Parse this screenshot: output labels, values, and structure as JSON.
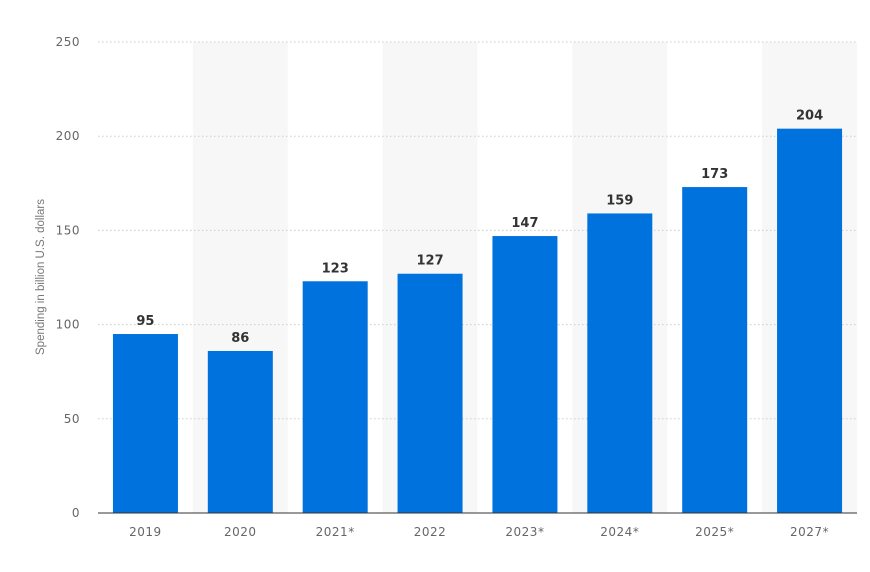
{
  "chart_data": {
    "type": "bar",
    "categories": [
      "2019",
      "2020",
      "2021*",
      "2022",
      "2023*",
      "2024*",
      "2025*",
      "2027*"
    ],
    "values": [
      95,
      86,
      123,
      127,
      147,
      159,
      173,
      204
    ],
    "value_labels": [
      "95",
      "86",
      "123",
      "127",
      "147",
      "159",
      "173",
      "204"
    ],
    "title": "",
    "xlabel": "",
    "ylabel": "Spending in billion U.S. dollars",
    "ylim": [
      0,
      250
    ],
    "yticks": [
      0,
      50,
      100,
      150,
      200,
      250
    ],
    "grid": true,
    "grid_style": "dotted",
    "alternating_column_shading": true,
    "legend": "none",
    "colors": {
      "bar": "#0072DE",
      "shade": "#F7F7F7",
      "grid": "#CCCCCC",
      "axis": "#333333"
    }
  }
}
